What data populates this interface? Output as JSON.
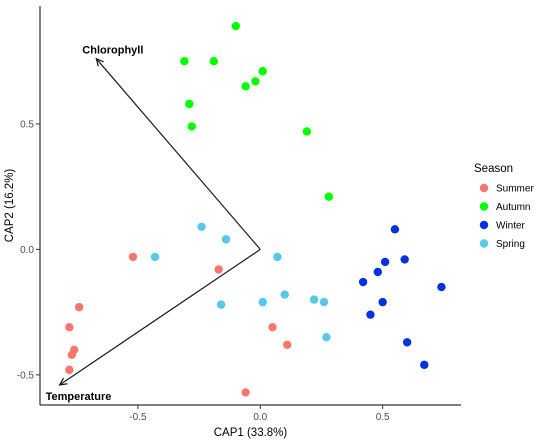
{
  "chart_data": {
    "type": "scatter",
    "xlabel": "CAP1 (33.8%)",
    "ylabel": "CAP2 (16.2%)",
    "xlim": [
      -0.9,
      0.82
    ],
    "ylim": [
      -0.62,
      0.97
    ],
    "x_ticks": [
      -0.5,
      0.0,
      0.5
    ],
    "x_tick_labels": [
      "-0.5",
      "0.0",
      "0.5"
    ],
    "y_ticks": [
      -0.5,
      0.0,
      0.5
    ],
    "y_tick_labels": [
      "-0.5",
      "0.0",
      "0.5"
    ],
    "grid": false,
    "legend": {
      "title": "Season",
      "placement": "right"
    },
    "series": [
      {
        "name": "Summer",
        "color": "#f8766d",
        "points": [
          {
            "x": -0.52,
            "y": -0.03
          },
          {
            "x": -0.17,
            "y": -0.08
          },
          {
            "x": -0.74,
            "y": -0.23
          },
          {
            "x": -0.78,
            "y": -0.31
          },
          {
            "x": -0.76,
            "y": -0.4
          },
          {
            "x": -0.77,
            "y": -0.42
          },
          {
            "x": -0.78,
            "y": -0.48
          },
          {
            "x": 0.05,
            "y": -0.31
          },
          {
            "x": 0.11,
            "y": -0.38
          },
          {
            "x": -0.06,
            "y": -0.57
          }
        ]
      },
      {
        "name": "Autumn",
        "color": "#00ff00",
        "points": [
          {
            "x": -0.1,
            "y": 0.89
          },
          {
            "x": -0.31,
            "y": 0.75
          },
          {
            "x": -0.19,
            "y": 0.75
          },
          {
            "x": 0.01,
            "y": 0.71
          },
          {
            "x": -0.06,
            "y": 0.65
          },
          {
            "x": -0.02,
            "y": 0.67
          },
          {
            "x": -0.29,
            "y": 0.58
          },
          {
            "x": -0.28,
            "y": 0.49
          },
          {
            "x": 0.19,
            "y": 0.47
          },
          {
            "x": 0.28,
            "y": 0.21
          }
        ]
      },
      {
        "name": "Winter",
        "color": "#0033dd",
        "points": [
          {
            "x": 0.55,
            "y": 0.08
          },
          {
            "x": 0.51,
            "y": -0.05
          },
          {
            "x": 0.59,
            "y": -0.04
          },
          {
            "x": 0.48,
            "y": -0.09
          },
          {
            "x": 0.42,
            "y": -0.13
          },
          {
            "x": 0.74,
            "y": -0.15
          },
          {
            "x": 0.5,
            "y": -0.21
          },
          {
            "x": 0.45,
            "y": -0.26
          },
          {
            "x": 0.6,
            "y": -0.37
          },
          {
            "x": 0.67,
            "y": -0.46
          }
        ]
      },
      {
        "name": "Spring",
        "color": "#56c8e8",
        "points": [
          {
            "x": -0.24,
            "y": 0.09
          },
          {
            "x": -0.14,
            "y": 0.04
          },
          {
            "x": -0.43,
            "y": -0.03
          },
          {
            "x": 0.07,
            "y": -0.03
          },
          {
            "x": 0.1,
            "y": -0.18
          },
          {
            "x": -0.16,
            "y": -0.22
          },
          {
            "x": 0.01,
            "y": -0.21
          },
          {
            "x": 0.22,
            "y": -0.2
          },
          {
            "x": 0.26,
            "y": -0.21
          },
          {
            "x": 0.27,
            "y": -0.35
          }
        ]
      }
    ],
    "vectors": [
      {
        "name": "Chlorophyll",
        "x": -0.67,
        "y": 0.76
      },
      {
        "name": "Temperature",
        "x": -0.82,
        "y": -0.54
      }
    ]
  }
}
